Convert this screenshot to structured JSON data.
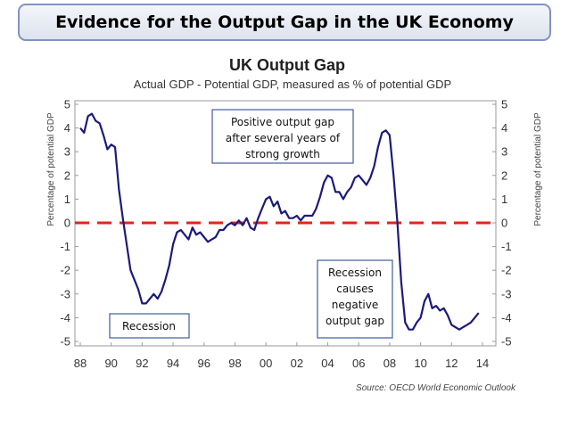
{
  "slide": {
    "title": "Evidence for the Output Gap in the UK Economy"
  },
  "colors": {
    "line": "#1c1a7a",
    "zero_line": "#e0261b",
    "annotation_border": "#3f5c9a"
  },
  "chart_data": {
    "type": "line",
    "title": "UK Output Gap",
    "subtitle": "Actual GDP - Potential GDP, measured as % of potential GDP",
    "ylabel": "Percentage of potential GDP",
    "ylabel_right": "Percentage of potential GDP",
    "source": "Source: OECD World Economic Outlook",
    "x_ticks": [
      "88",
      "90",
      "92",
      "94",
      "96",
      "98",
      "00",
      "02",
      "04",
      "06",
      "08",
      "10",
      "12",
      "14"
    ],
    "y_ticks": [
      "5",
      "4",
      "3",
      "2",
      "1",
      "0",
      "-1",
      "-2",
      "-3",
      "-4",
      "-5"
    ],
    "ylim": [
      -5,
      5
    ],
    "xlim": [
      1988,
      2014
    ],
    "grid": false,
    "series": [
      {
        "x": [
          1988.0,
          1988.25,
          1988.5,
          1988.75,
          1989.0,
          1989.25,
          1989.5,
          1989.75,
          1990.0,
          1990.25,
          1990.5,
          1990.75,
          1991.0,
          1991.25,
          1991.5,
          1991.75,
          1992.0,
          1992.25,
          1992.5,
          1992.75,
          1993.0,
          1993.25,
          1993.5,
          1993.75,
          1994.0,
          1994.25,
          1994.5,
          1994.75,
          1995.0,
          1995.25,
          1995.5,
          1995.75,
          1996.0,
          1996.25,
          1996.5,
          1996.75,
          1997.0,
          1997.25,
          1997.5,
          1997.75,
          1998.0,
          1998.25,
          1998.5,
          1998.75,
          1999.0,
          1999.25,
          1999.5,
          1999.75,
          2000.0,
          2000.25,
          2000.5,
          2000.75,
          2001.0,
          2001.25,
          2001.5,
          2001.75,
          2002.0,
          2002.25,
          2002.5,
          2002.75,
          2003.0,
          2003.25,
          2003.5,
          2003.75,
          2004.0,
          2004.25,
          2004.5,
          2004.75,
          2005.0,
          2005.25,
          2005.5,
          2005.75,
          2006.0,
          2006.25,
          2006.5,
          2006.75,
          2007.0,
          2007.25,
          2007.5,
          2007.75,
          2008.0,
          2008.25,
          2008.5,
          2008.75,
          2009.0,
          2009.25,
          2009.5,
          2009.75,
          2010.0,
          2010.25,
          2010.5,
          2010.75,
          2011.0,
          2011.25,
          2011.5,
          2011.75,
          2012.0,
          2012.25,
          2012.5,
          2012.75,
          2013.0,
          2013.25,
          2013.5,
          2013.75
        ],
        "values": [
          4.0,
          3.8,
          4.5,
          4.6,
          4.3,
          4.2,
          3.7,
          3.1,
          3.3,
          3.2,
          1.4,
          0.2,
          -0.9,
          -2.0,
          -2.4,
          -2.8,
          -3.4,
          -3.4,
          -3.2,
          -3.0,
          -3.2,
          -2.9,
          -2.4,
          -1.8,
          -0.9,
          -0.4,
          -0.3,
          -0.5,
          -0.7,
          -0.2,
          -0.5,
          -0.4,
          -0.6,
          -0.8,
          -0.7,
          -0.6,
          -0.3,
          -0.3,
          -0.1,
          0.0,
          -0.1,
          0.1,
          -0.1,
          0.2,
          -0.2,
          -0.3,
          0.2,
          0.6,
          1.0,
          1.1,
          0.7,
          0.9,
          0.4,
          0.5,
          0.2,
          0.2,
          0.3,
          0.1,
          0.3,
          0.3,
          0.3,
          0.6,
          1.1,
          1.7,
          2.0,
          1.9,
          1.3,
          1.3,
          1.0,
          1.3,
          1.5,
          1.9,
          2.0,
          1.8,
          1.6,
          1.9,
          2.4,
          3.2,
          3.8,
          3.9,
          3.7,
          2.0,
          0.0,
          -2.5,
          -4.2,
          -4.5,
          -4.5,
          -4.2,
          -4.0,
          -3.3,
          -3.0,
          -3.6,
          -3.5,
          -3.7,
          -3.6,
          -3.9,
          -4.3,
          -4.4,
          -4.5,
          -4.4,
          -4.3,
          -4.2,
          -4.0,
          -3.8
        ]
      }
    ],
    "annotations": [
      {
        "lines": [
          "Positive output gap",
          "after several years of",
          "strong growth"
        ]
      },
      {
        "lines": [
          "Recession"
        ]
      },
      {
        "lines": [
          "Recession",
          "causes",
          "negative",
          "output gap"
        ]
      }
    ]
  }
}
